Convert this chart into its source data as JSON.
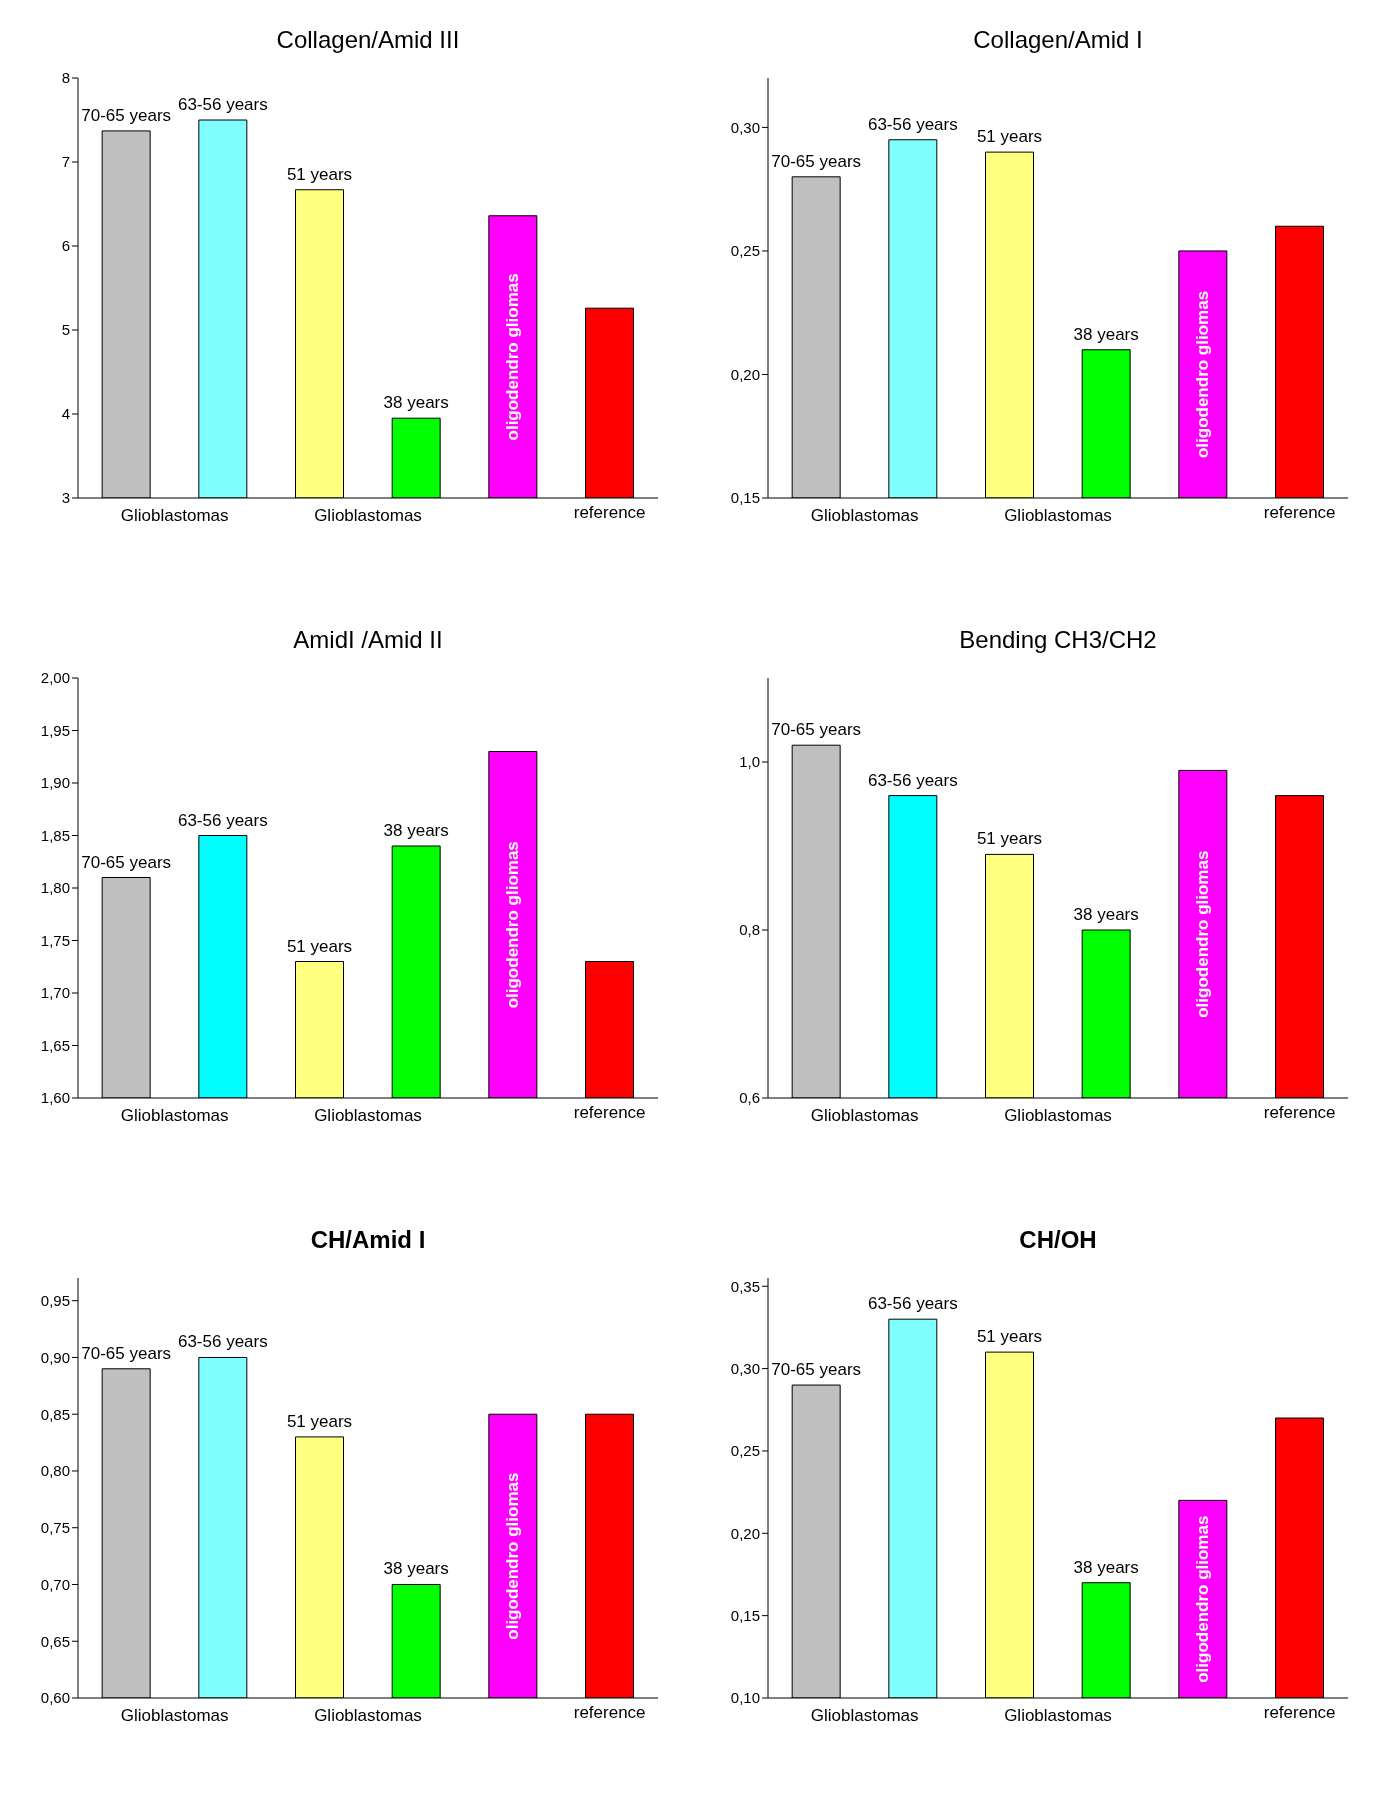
{
  "chart_data": [
    {
      "type": "bar",
      "title": "Collagen/Amid III",
      "categories": [
        "70-65 years",
        "63-56 years",
        "51 years",
        "38 years",
        "oligodendro gliomas",
        "reference"
      ],
      "values": [
        7.37,
        7.5,
        6.67,
        3.95,
        6.36,
        5.26
      ],
      "colors": [
        "#c0c0c0",
        "#80ffff",
        "#ffff80",
        "#00ff00",
        "#ff00ff",
        "#ff0000"
      ],
      "ylim": [
        3,
        8
      ],
      "yticks": [
        3,
        4,
        5,
        6,
        7,
        8
      ],
      "annotations": [
        "Glioblastomas",
        "Glioblastomas"
      ]
    },
    {
      "type": "bar",
      "title": "Collagen/Amid I",
      "categories": [
        "70-65 years",
        "63-56 years",
        "51 years",
        "38 years",
        "oligodendro gliomas",
        "reference"
      ],
      "values": [
        0.28,
        0.295,
        0.29,
        0.21,
        0.25,
        0.26
      ],
      "colors": [
        "#c0c0c0",
        "#80ffff",
        "#ffff80",
        "#00ff00",
        "#ff00ff",
        "#ff0000"
      ],
      "ylim": [
        0.15,
        0.32
      ],
      "yticks": [
        {
          "value": 0.15,
          "label": "0,15"
        },
        {
          "value": 0.2,
          "label": "0,20"
        },
        {
          "value": 0.25,
          "label": "0,25"
        },
        {
          "value": 0.3,
          "label": "0,30"
        }
      ],
      "annotations": [
        "Glioblastomas",
        "Glioblastomas"
      ]
    },
    {
      "type": "bar",
      "title": "AmidI /Amid II",
      "categories": [
        "70-65 years",
        "63-56 years",
        "51 years",
        "38 years",
        "oligodendro gliomas",
        "reference"
      ],
      "values": [
        1.81,
        1.85,
        1.73,
        1.84,
        1.93,
        1.73
      ],
      "colors": [
        "#c0c0c0",
        "#00ffff",
        "#ffff80",
        "#00ff00",
        "#ff00ff",
        "#ff0000"
      ],
      "ylim": [
        1.6,
        2.0
      ],
      "yticks": [
        {
          "value": 1.6,
          "label": "1,60"
        },
        {
          "value": 1.65,
          "label": "1,65"
        },
        {
          "value": 1.7,
          "label": "1,70"
        },
        {
          "value": 1.75,
          "label": "1,75"
        },
        {
          "value": 1.8,
          "label": "1,80"
        },
        {
          "value": 1.85,
          "label": "1,85"
        },
        {
          "value": 1.9,
          "label": "1,90"
        },
        {
          "value": 1.95,
          "label": "1,95"
        },
        {
          "value": 2.0,
          "label": "2,00"
        }
      ],
      "annotations": [
        "Glioblastomas",
        "Glioblastomas"
      ]
    },
    {
      "type": "bar",
      "title": "Bending CH3/CH2",
      "categories": [
        "70-65 years",
        "63-56 years",
        "51 years",
        "38 years",
        "oligodendro gliomas",
        "reference"
      ],
      "values": [
        1.02,
        0.96,
        0.89,
        0.8,
        0.99,
        0.96
      ],
      "colors": [
        "#c0c0c0",
        "#00ffff",
        "#ffff80",
        "#00ff00",
        "#ff00ff",
        "#ff0000"
      ],
      "ylim": [
        0.6,
        1.1
      ],
      "yticks": [
        {
          "value": 0.6,
          "label": "0,6"
        },
        {
          "value": 0.8,
          "label": "0,8"
        },
        {
          "value": 1.0,
          "label": "1,0"
        }
      ],
      "annotations": [
        "Glioblastomas",
        "Glioblastomas"
      ]
    },
    {
      "type": "bar",
      "title": "CH/Amid I",
      "categories": [
        "70-65 years",
        "63-56 years",
        "51 years",
        "38 years",
        "oligodendro gliomas",
        "reference"
      ],
      "values": [
        0.89,
        0.9,
        0.83,
        0.7,
        0.85,
        0.85
      ],
      "colors": [
        "#c0c0c0",
        "#80ffff",
        "#ffff80",
        "#00ff00",
        "#ff00ff",
        "#ff0000"
      ],
      "ylim": [
        0.6,
        0.97
      ],
      "yticks": [
        {
          "value": 0.6,
          "label": "0,60"
        },
        {
          "value": 0.65,
          "label": "0,65"
        },
        {
          "value": 0.7,
          "label": "0,70"
        },
        {
          "value": 0.75,
          "label": "0,75"
        },
        {
          "value": 0.8,
          "label": "0,80"
        },
        {
          "value": 0.85,
          "label": "0,85"
        },
        {
          "value": 0.9,
          "label": "0,90"
        },
        {
          "value": 0.95,
          "label": "0,95"
        }
      ],
      "annotations": [
        "Glioblastomas",
        "Glioblastomas"
      ]
    },
    {
      "type": "bar",
      "title": "CH/OH",
      "categories": [
        "70-65 years",
        "63-56 years",
        "51 years",
        "38 years",
        "oligodendro gliomas",
        "reference"
      ],
      "values": [
        0.29,
        0.33,
        0.31,
        0.17,
        0.22,
        0.27
      ],
      "colors": [
        "#c0c0c0",
        "#80ffff",
        "#ffff80",
        "#00ff00",
        "#ff00ff",
        "#ff0000"
      ],
      "ylim": [
        0.1,
        0.355
      ],
      "yticks": [
        {
          "value": 0.1,
          "label": "0,10"
        },
        {
          "value": 0.15,
          "label": "0,15"
        },
        {
          "value": 0.2,
          "label": "0,20"
        },
        {
          "value": 0.25,
          "label": "0,25"
        },
        {
          "value": 0.3,
          "label": "0,30"
        },
        {
          "value": 0.35,
          "label": "0,35"
        }
      ],
      "annotations": [
        "Glioblastomas",
        "Glioblastomas"
      ]
    }
  ]
}
